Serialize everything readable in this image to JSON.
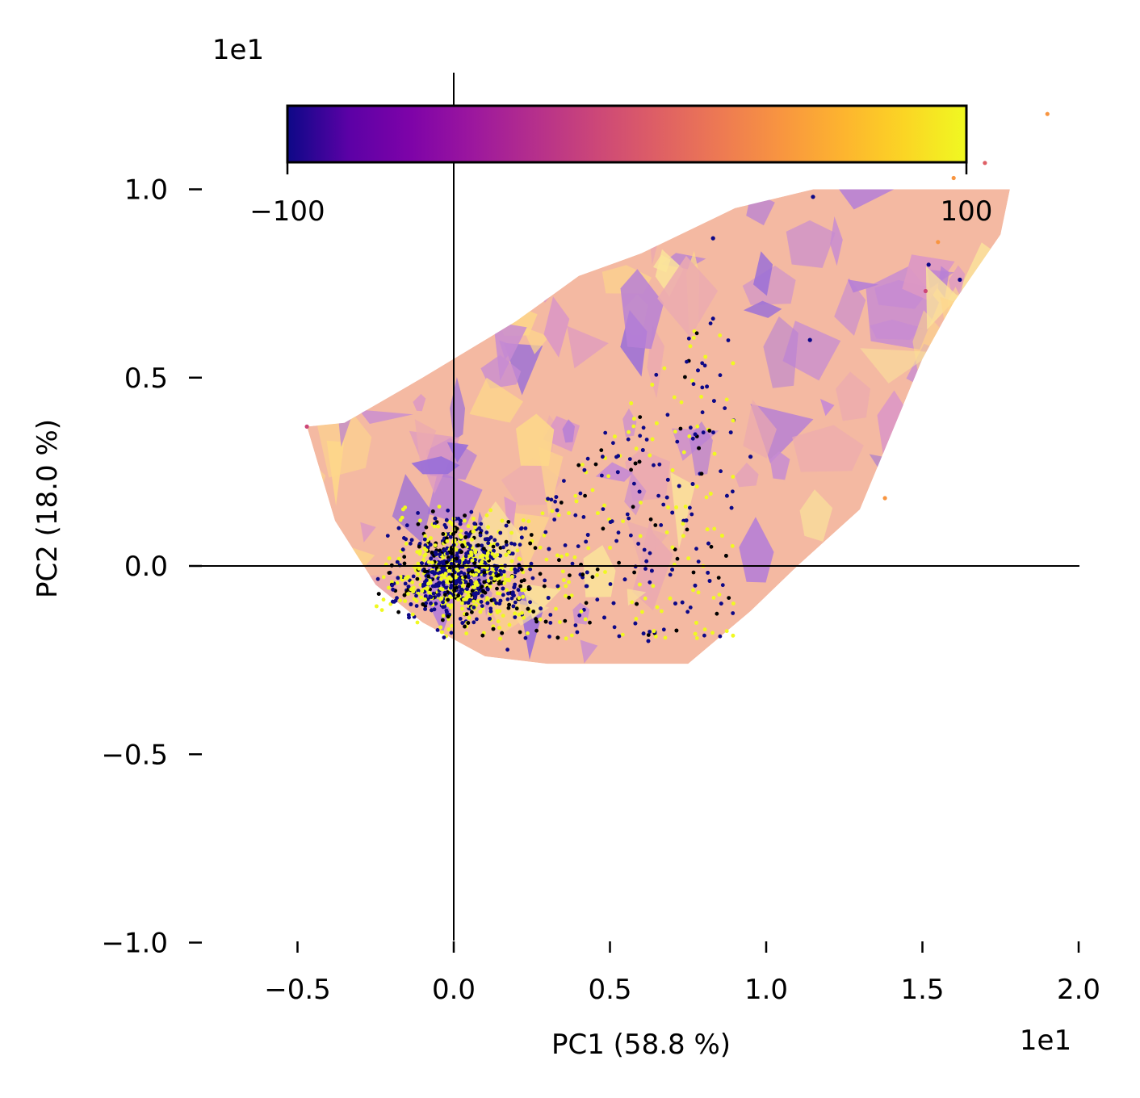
{
  "chart_data": {
    "type": "scatter",
    "title": "",
    "xlabel": "PC1 (58.8 %)",
    "ylabel": "PC2 (18.0 %)",
    "x_offset_text": "1e1",
    "colorbar_offset_text": "1e1",
    "xlim": [
      -0.8,
      2.0
    ],
    "ylim": [
      -1.0,
      1.0
    ],
    "x_ticks": [
      -0.5,
      0.0,
      0.5,
      1.0,
      1.5,
      2.0
    ],
    "x_tick_labels": [
      "−0.5",
      "0.0",
      "0.5",
      "1.0",
      "1.5",
      "2.0"
    ],
    "y_ticks": [
      -1.0,
      -0.5,
      0.0,
      0.5,
      1.0
    ],
    "y_tick_labels": [
      "−1.0",
      "−0.5",
      "0.0",
      "0.5",
      "1.0"
    ],
    "colorbar": {
      "colormap": "plasma",
      "min_label": "−100",
      "max_label": "100",
      "stops": [
        "#0d0887",
        "#5c01a6",
        "#7e03a8",
        "#9c179e",
        "#b52f8c",
        "#cc4778",
        "#de5f65",
        "#ed7953",
        "#f89540",
        "#fdb42f",
        "#fbd524",
        "#f0f921"
      ]
    },
    "region_outline": [
      [
        -0.47,
        0.37
      ],
      [
        -0.35,
        0.38
      ],
      [
        -0.1,
        0.5
      ],
      [
        0.2,
        0.65
      ],
      [
        0.4,
        0.77
      ],
      [
        0.6,
        0.83
      ],
      [
        0.9,
        0.95
      ],
      [
        1.15,
        1.0
      ],
      [
        1.55,
        1.0
      ],
      [
        1.78,
        1.0
      ],
      [
        1.75,
        0.88
      ],
      [
        1.6,
        0.7
      ],
      [
        1.5,
        0.55
      ],
      [
        1.4,
        0.35
      ],
      [
        1.3,
        0.15
      ],
      [
        1.1,
        0.0
      ],
      [
        0.95,
        -0.12
      ],
      [
        0.75,
        -0.26
      ],
      [
        0.55,
        -0.26
      ],
      [
        0.3,
        -0.26
      ],
      [
        0.1,
        -0.24
      ],
      [
        -0.1,
        -0.15
      ],
      [
        -0.25,
        -0.05
      ],
      [
        -0.38,
        0.12
      ],
      [
        -0.47,
        0.37
      ]
    ],
    "outlier_points": [
      {
        "x": 1.9,
        "y": 1.2,
        "color": "#f89540"
      },
      {
        "x": 1.7,
        "y": 1.07,
        "color": "#de5f65"
      },
      {
        "x": 1.6,
        "y": 1.03,
        "color": "#f89540"
      },
      {
        "x": 1.52,
        "y": 0.8,
        "color": "#0d0887"
      },
      {
        "x": 1.55,
        "y": 0.86,
        "color": "#f89540"
      },
      {
        "x": 1.62,
        "y": 0.76,
        "color": "#0d0887"
      },
      {
        "x": 1.51,
        "y": 0.73,
        "color": "#cc4778"
      },
      {
        "x": 1.38,
        "y": 0.18,
        "color": "#f89540"
      },
      {
        "x": 1.15,
        "y": 0.98,
        "color": "#0d0887"
      },
      {
        "x": 0.83,
        "y": 0.87,
        "color": "#0d0887"
      },
      {
        "x": 0.95,
        "y": 0.29,
        "color": "#0d0887"
      },
      {
        "x": 1.14,
        "y": 0.6,
        "color": "#0d0887"
      },
      {
        "x": -0.47,
        "y": 0.37,
        "color": "#cc4778"
      }
    ],
    "series": [
      {
        "values_encoded_by_color": "plasma colormap, range −100 to 100 (×1e1)"
      }
    ]
  }
}
